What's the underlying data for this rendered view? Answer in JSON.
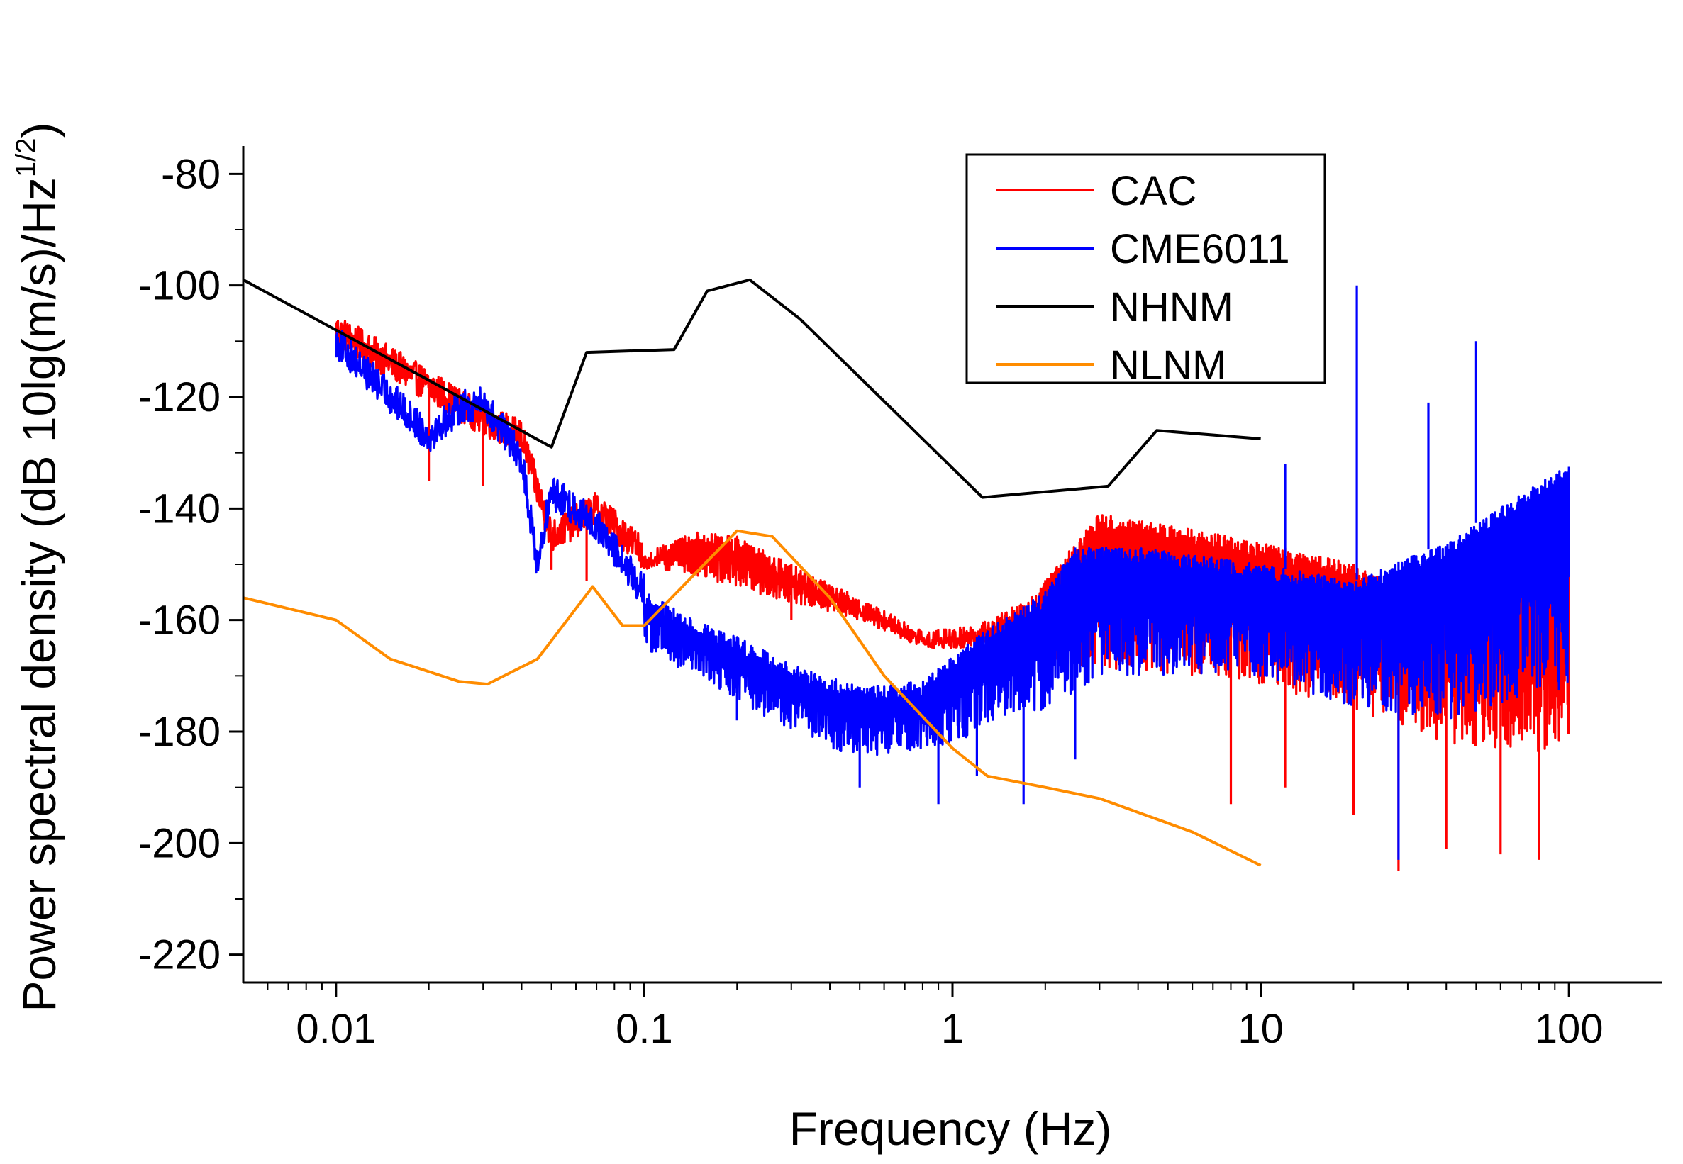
{
  "chart_data": {
    "type": "line",
    "xlabel": "Frequency  (Hz)",
    "ylabel": "Power spectral density  (dB 10lg(m/s)/Hz",
    "ylabel_sup": "1/2",
    "ylabel_close": ")",
    "x_scale": "log",
    "xlim": [
      0.005,
      200
    ],
    "ylim": [
      -225,
      -75
    ],
    "x_ticks": [
      {
        "value": 0.01,
        "label": "0.01"
      },
      {
        "value": 0.1,
        "label": "0.1"
      },
      {
        "value": 1,
        "label": "1"
      },
      {
        "value": 10,
        "label": "10"
      },
      {
        "value": 100,
        "label": "100"
      }
    ],
    "y_ticks": [
      {
        "value": -80,
        "label": "-80"
      },
      {
        "value": -100,
        "label": "-100"
      },
      {
        "value": -120,
        "label": "-120"
      },
      {
        "value": -140,
        "label": "-140"
      },
      {
        "value": -160,
        "label": "-160"
      },
      {
        "value": -180,
        "label": "-180"
      },
      {
        "value": -200,
        "label": "-200"
      },
      {
        "value": -220,
        "label": "-220"
      }
    ],
    "grid": false,
    "legend_position": "top-right",
    "series": [
      {
        "name": "CAC",
        "color": "#ff0000",
        "kind": "psd-noisy",
        "anchor_points": [
          [
            0.01,
            -108
          ],
          [
            0.02,
            -118
          ],
          [
            0.03,
            -124
          ],
          [
            0.04,
            -127
          ],
          [
            0.05,
            -145
          ],
          [
            0.07,
            -140
          ],
          [
            0.1,
            -148
          ],
          [
            0.15,
            -144
          ],
          [
            0.2,
            -145
          ],
          [
            0.3,
            -150
          ],
          [
            0.5,
            -156
          ],
          [
            0.8,
            -162
          ],
          [
            1.2,
            -161
          ],
          [
            1.8,
            -156
          ],
          [
            2.2,
            -150
          ],
          [
            3,
            -141
          ],
          [
            5,
            -143
          ],
          [
            10,
            -146
          ],
          [
            20,
            -150
          ],
          [
            30,
            -155
          ],
          [
            50,
            -152
          ],
          [
            100,
            -150
          ]
        ],
        "noise_lower": [
          [
            0.1,
            -150
          ],
          [
            0.5,
            -160
          ],
          [
            0.8,
            -165
          ],
          [
            1.5,
            -165
          ],
          [
            2.5,
            -168
          ],
          [
            5,
            -170
          ],
          [
            10,
            -172
          ],
          [
            20,
            -176
          ],
          [
            40,
            -182
          ],
          [
            100,
            -184
          ]
        ],
        "spikes": [
          [
            0.02,
            -135
          ],
          [
            0.03,
            -136
          ],
          [
            0.05,
            -151
          ],
          [
            0.065,
            -153
          ],
          [
            0.3,
            -160
          ],
          [
            2,
            -170
          ],
          [
            8,
            -193
          ],
          [
            12,
            -190
          ],
          [
            20,
            -195
          ],
          [
            28,
            -205
          ],
          [
            40,
            -201
          ],
          [
            60,
            -202
          ],
          [
            80,
            -203
          ]
        ]
      },
      {
        "name": "CME6011",
        "color": "#0000ff",
        "kind": "psd-noisy",
        "anchor_points": [
          [
            0.01,
            -110
          ],
          [
            0.02,
            -127
          ],
          [
            0.025,
            -122
          ],
          [
            0.03,
            -121
          ],
          [
            0.04,
            -131
          ],
          [
            0.045,
            -150
          ],
          [
            0.05,
            -137
          ],
          [
            0.07,
            -143
          ],
          [
            0.1,
            -155
          ],
          [
            0.15,
            -160
          ],
          [
            0.2,
            -163
          ],
          [
            0.3,
            -168
          ],
          [
            0.5,
            -172
          ],
          [
            0.8,
            -171
          ],
          [
            1.2,
            -163
          ],
          [
            2,
            -155
          ],
          [
            2.5,
            -147
          ],
          [
            4,
            -147
          ],
          [
            10,
            -150
          ],
          [
            20,
            -153
          ],
          [
            40,
            -146
          ],
          [
            100,
            -132
          ]
        ],
        "noise_lower": [
          [
            0.1,
            -165
          ],
          [
            0.3,
            -180
          ],
          [
            0.5,
            -185
          ],
          [
            1,
            -182
          ],
          [
            2,
            -176
          ],
          [
            3,
            -170
          ],
          [
            10,
            -170
          ],
          [
            20,
            -176
          ],
          [
            50,
            -178
          ],
          [
            100,
            -172
          ]
        ],
        "spikes": [
          [
            0.2,
            -178
          ],
          [
            0.5,
            -190
          ],
          [
            0.9,
            -193
          ],
          [
            1.2,
            -188
          ],
          [
            1.7,
            -193
          ],
          [
            2.5,
            -185
          ],
          [
            12,
            -132
          ],
          [
            20.5,
            -100
          ],
          [
            28,
            -203
          ],
          [
            35,
            -121
          ],
          [
            50,
            -110
          ]
        ]
      },
      {
        "name": "NHNM",
        "color": "#000000",
        "kind": "line",
        "points": [
          [
            0.005,
            -99
          ],
          [
            0.02,
            -117
          ],
          [
            0.05,
            -129
          ],
          [
            0.065,
            -112
          ],
          [
            0.125,
            -111.5
          ],
          [
            0.16,
            -101
          ],
          [
            0.22,
            -99
          ],
          [
            0.32,
            -106
          ],
          [
            1.25,
            -138
          ],
          [
            3.2,
            -136
          ],
          [
            4.6,
            -126
          ],
          [
            10,
            -127.5
          ]
        ]
      },
      {
        "name": "NLNM",
        "color": "#ff8c00",
        "kind": "line",
        "points": [
          [
            0.005,
            -156
          ],
          [
            0.01,
            -160
          ],
          [
            0.015,
            -167
          ],
          [
            0.025,
            -171
          ],
          [
            0.031,
            -171.5
          ],
          [
            0.045,
            -167
          ],
          [
            0.068,
            -154
          ],
          [
            0.085,
            -161
          ],
          [
            0.1,
            -161
          ],
          [
            0.2,
            -144
          ],
          [
            0.26,
            -145
          ],
          [
            0.4,
            -156
          ],
          [
            0.6,
            -170
          ],
          [
            1,
            -183
          ],
          [
            1.3,
            -188
          ],
          [
            2,
            -190
          ],
          [
            3,
            -192
          ],
          [
            6,
            -198
          ],
          [
            10,
            -204
          ]
        ]
      }
    ]
  }
}
